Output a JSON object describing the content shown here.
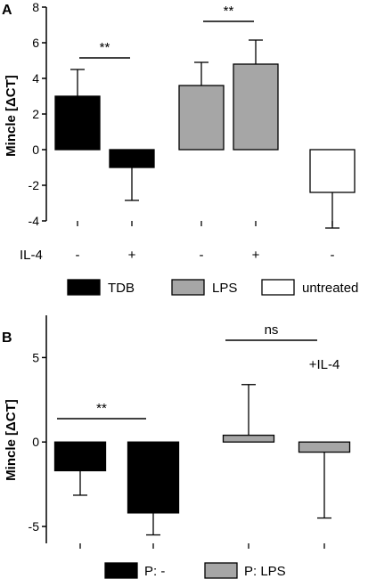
{
  "chart_data": [
    {
      "panel": "A",
      "type": "bar",
      "ylabel": "Mincle [ΔCT]",
      "ylim": [
        -4,
        8
      ],
      "yticks": [
        -4,
        -2,
        0,
        2,
        4,
        6,
        8
      ],
      "condition_label": "IL-4",
      "categories": [
        "-",
        "+",
        "-",
        "+",
        "-"
      ],
      "values": [
        3.0,
        -1.0,
        3.6,
        4.8,
        -2.4
      ],
      "errors": [
        1.5,
        1.85,
        1.3,
        1.35,
        2.0
      ],
      "colors": [
        "#000000",
        "#000000",
        "#a6a6a6",
        "#a6a6a6",
        "#ffffff"
      ],
      "legend": [
        {
          "label": "TDB",
          "color": "#000000"
        },
        {
          "label": "LPS",
          "color": "#a6a6a6"
        },
        {
          "label": "untreated",
          "color": "#ffffff"
        }
      ],
      "significance": [
        {
          "bars": [
            0,
            1
          ],
          "label": "**"
        },
        {
          "bars": [
            2,
            3
          ],
          "label": "**"
        }
      ],
      "grid": false,
      "legend_position": "bottom"
    },
    {
      "panel": "B",
      "type": "bar",
      "ylabel": "Mincle [ΔCT]",
      "ylim": [
        -6,
        7.5
      ],
      "yticks": [
        -5,
        0,
        5
      ],
      "values": [
        -1.7,
        -4.2,
        0.4,
        -0.6
      ],
      "errors": [
        1.45,
        1.3,
        3.0,
        3.9
      ],
      "colors": [
        "#000000",
        "#000000",
        "#a6a6a6",
        "#a6a6a6"
      ],
      "bar_annotations": [
        "",
        "+IL-4",
        "",
        "+IL-4"
      ],
      "legend": [
        {
          "label": "P: -",
          "color": "#000000"
        },
        {
          "label": "P: LPS",
          "color": "#a6a6a6"
        }
      ],
      "significance": [
        {
          "bars": [
            0,
            1
          ],
          "label": "**"
        },
        {
          "bars": [
            2,
            3
          ],
          "label": "ns"
        }
      ],
      "grid": false,
      "legend_position": "bottom"
    }
  ]
}
